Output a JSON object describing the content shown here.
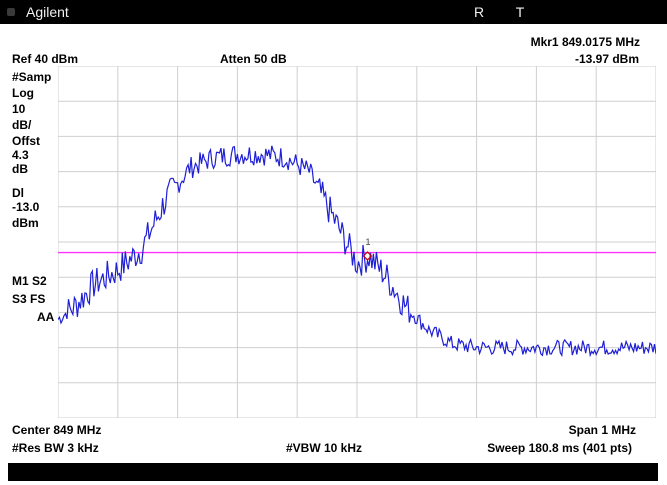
{
  "header": {
    "brand": "Agilent",
    "flags": "R T"
  },
  "top": {
    "ref": "Ref 40 dBm",
    "atten": "Atten 50 dB",
    "marker_label": "Mkr1  849.0175 MHz",
    "marker_value": "-13.97 dBm"
  },
  "left_panel": {
    "samp": "#Samp",
    "log": "Log",
    "log_val": "10",
    "db_div": "dB/",
    "offst": "Offst",
    "offst_val": "4.3",
    "offst_unit": "dB",
    "dl": "Dl",
    "dl_val": "-13.0",
    "dl_unit": "dBm",
    "m1s2": "M1  S2",
    "s3fs": "S3  FS",
    "aa": "AA"
  },
  "bottom": {
    "center": "Center 849 MHz",
    "span": "Span 1 MHz",
    "res_bw": "#Res BW 3 kHz",
    "vbw": "#VBW 10 kHz",
    "sweep": "Sweep 180.8 ms (401 pts)"
  },
  "chart_data": {
    "type": "line",
    "title": "",
    "xlabel": "",
    "ylabel": "",
    "x_center": "849 MHz",
    "x_span": "1 MHz",
    "ylim": [
      -60,
      40
    ],
    "grid": true,
    "display_line_dbm": -13.0,
    "marker": {
      "label": "1",
      "x_mhz": 849.0175,
      "y_dbm": -13.97
    },
    "colors": {
      "trace": "#1f1fd6",
      "display_line": "#ff33ff",
      "grid": "#cfcfcf",
      "marker": "#d10000"
    },
    "series": [
      {
        "x_mhz": [
          848.5,
          848.53,
          848.56,
          848.6,
          848.64,
          848.68,
          848.72,
          848.76,
          848.8,
          848.84,
          848.88,
          848.92,
          848.96,
          849.0,
          849.02,
          849.05,
          849.08,
          849.12,
          849.16,
          849.2,
          849.24,
          849.28,
          849.32,
          849.36,
          849.4,
          849.44,
          849.48,
          849.5
        ],
        "values": [
          -32,
          -28,
          -22,
          -18,
          -12,
          2,
          11,
          14,
          15,
          15,
          14,
          10,
          -3,
          -16,
          -14,
          -20,
          -28,
          -35,
          -39,
          -40,
          -40,
          -40,
          -40,
          -40,
          -40,
          -40,
          -40,
          -40
        ]
      }
    ]
  }
}
